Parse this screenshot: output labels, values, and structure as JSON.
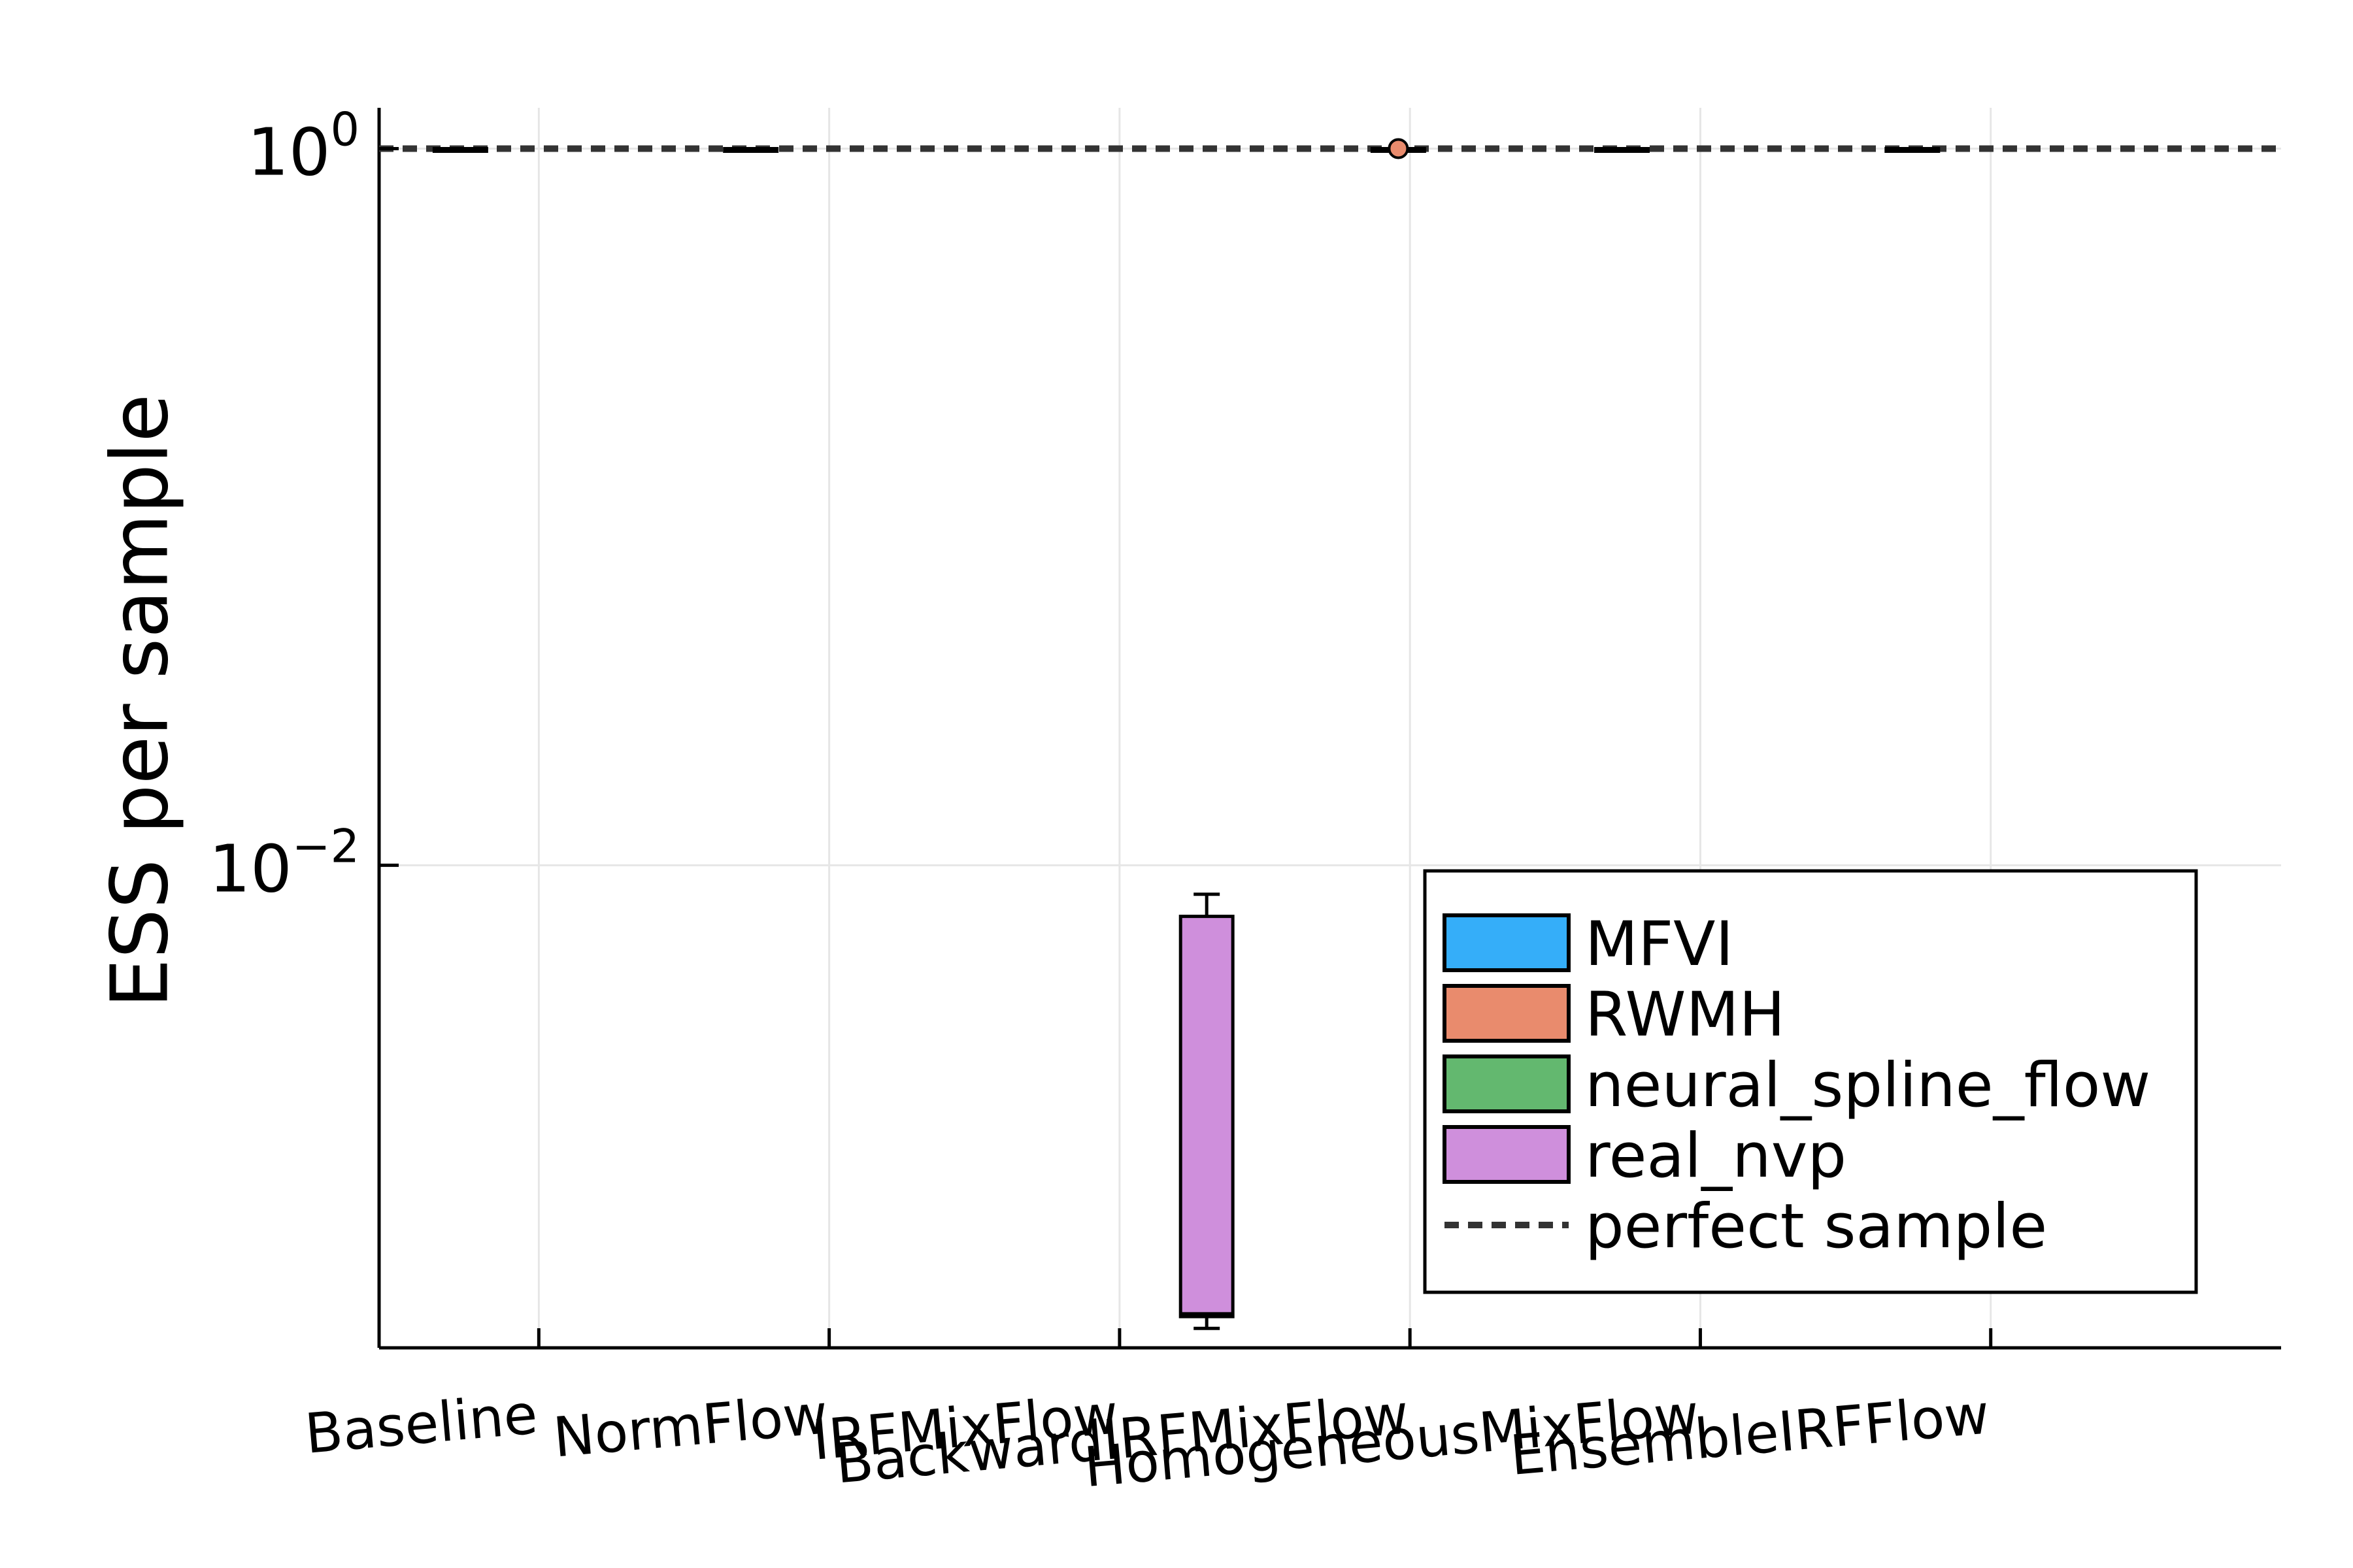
{
  "chart_data": {
    "type": "box",
    "title": "",
    "xlabel": "",
    "ylabel": "ESS per sample",
    "y_scale": "log10",
    "ylim": [
      0.00045,
      1.3
    ],
    "yticks": [
      {
        "value": 1,
        "base": "10",
        "exp": "0"
      },
      {
        "value": 0.01,
        "base": "10",
        "exp": "−2"
      }
    ],
    "categories": [
      "Baseline",
      "NormFlow",
      "IRFMixFlow",
      "BackwardIRFMixFlow",
      "HomogeneousMixFlow",
      "EnsembleIRFFlow"
    ],
    "grid": true,
    "legend_position": "bottom-right",
    "series": [
      {
        "name": "MFVI",
        "color": "#35aef9",
        "boxes": [
          {
            "category": "Baseline",
            "min": 1,
            "q1": 1,
            "median": 1,
            "q3": 1,
            "max": 1
          },
          {
            "category": "NormFlow",
            "min": 1,
            "q1": 1,
            "median": 1,
            "q3": 1,
            "max": 1
          },
          {
            "category": "HomogeneousMixFlow",
            "min": 1,
            "q1": 1,
            "median": 1,
            "q3": 1,
            "max": 1
          },
          {
            "category": "EnsembleIRFFlow",
            "min": 1,
            "q1": 1,
            "median": 1,
            "q3": 1,
            "max": 1
          }
        ]
      },
      {
        "name": "RWMH",
        "color": "#e98b6d",
        "boxes": [
          {
            "category": "BackwardIRFMixFlow",
            "min": 1,
            "q1": 1,
            "median": 1,
            "q3": 1,
            "max": 1,
            "outliers": [
              1
            ]
          }
        ]
      },
      {
        "name": "neural_spline_flow",
        "color": "#63b86f",
        "boxes": []
      },
      {
        "name": "real_nvp",
        "color": "#cf8fdc",
        "boxes": [
          {
            "category": "IRFMixFlow",
            "min": 0.00051,
            "q1": 0.00055,
            "median": 0.00056,
            "q3": 0.0072,
            "max": 0.0083
          }
        ]
      }
    ],
    "reference_lines": [
      {
        "name": "perfect sample",
        "value": 1,
        "style": "dashed",
        "color": "#333333"
      }
    ]
  }
}
